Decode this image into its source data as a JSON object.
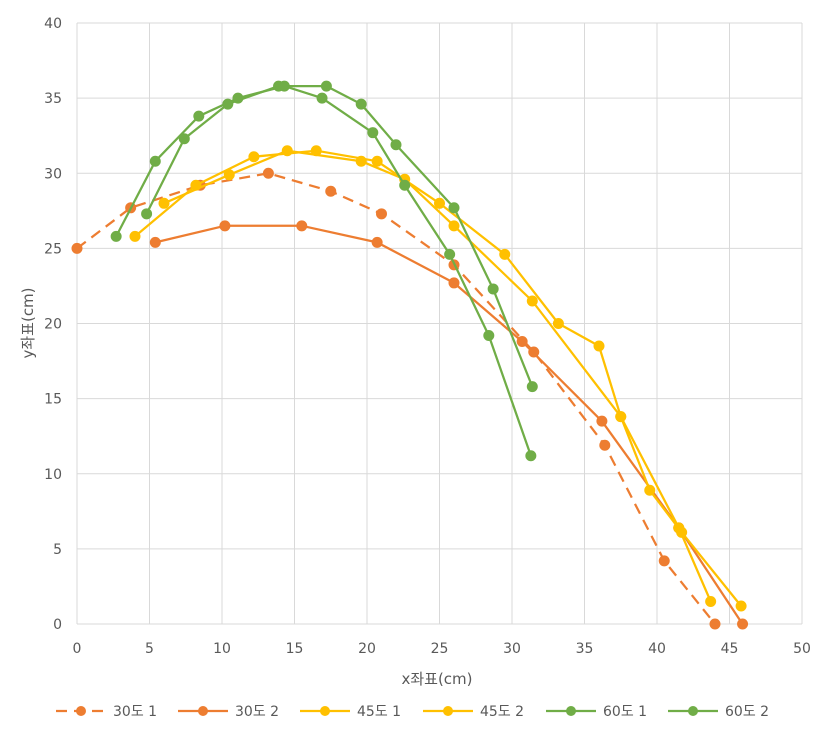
{
  "chart_data": {
    "type": "scatter",
    "xlabel": "x좌표(cm)",
    "ylabel": "y좌표(cm)",
    "xlim": [
      0,
      50
    ],
    "ylim": [
      0,
      40
    ],
    "x_ticks": [
      0,
      5,
      10,
      15,
      20,
      25,
      30,
      35,
      40,
      45,
      50
    ],
    "y_ticks": [
      0,
      5,
      10,
      15,
      20,
      25,
      30,
      35,
      40
    ],
    "grid": true,
    "legend_position": "bottom",
    "series": [
      {
        "name": "30도 1",
        "color": "#ED7D31",
        "dashed": true,
        "points": [
          [
            0,
            25
          ],
          [
            3.7,
            27.7
          ],
          [
            8.5,
            29.2
          ],
          [
            13.2,
            30
          ],
          [
            17.5,
            28.8
          ],
          [
            21,
            27.3
          ],
          [
            26,
            23.9
          ],
          [
            31.5,
            18.1
          ],
          [
            36.4,
            11.9
          ],
          [
            40.5,
            4.2
          ],
          [
            44,
            0
          ]
        ]
      },
      {
        "name": "30도 2",
        "color": "#ED7D31",
        "dashed": false,
        "points": [
          [
            5.4,
            25.4
          ],
          [
            10.2,
            26.5
          ],
          [
            15.5,
            26.5
          ],
          [
            20.7,
            25.4
          ],
          [
            26,
            22.7
          ],
          [
            30.7,
            18.8
          ],
          [
            36.2,
            13.5
          ],
          [
            41.5,
            6.4
          ],
          [
            45.9,
            0
          ]
        ]
      },
      {
        "name": "45도 1",
        "color": "#FFC000",
        "dashed": false,
        "points": [
          [
            4,
            25.8
          ],
          [
            8.2,
            29.2
          ],
          [
            12.2,
            31.1
          ],
          [
            16.5,
            31.5
          ],
          [
            20.7,
            30.8
          ],
          [
            25,
            28
          ],
          [
            29.5,
            24.6
          ],
          [
            33.2,
            20
          ],
          [
            36,
            18.5
          ],
          [
            37.5,
            13.8
          ],
          [
            39.5,
            8.9
          ],
          [
            41.7,
            6.1
          ],
          [
            45.8,
            1.2
          ]
        ]
      },
      {
        "name": "45도 2",
        "color": "#FFC000",
        "dashed": false,
        "points": [
          [
            6,
            28
          ],
          [
            10.5,
            29.9
          ],
          [
            14.5,
            31.5
          ],
          [
            19.6,
            30.8
          ],
          [
            22.6,
            29.6
          ],
          [
            26,
            26.5
          ],
          [
            31.4,
            21.5
          ],
          [
            37.5,
            13.8
          ],
          [
            41.5,
            6.4
          ],
          [
            43.7,
            1.5
          ]
        ]
      },
      {
        "name": "60도 1",
        "color": "#70AD47",
        "dashed": false,
        "points": [
          [
            4.8,
            27.3
          ],
          [
            7.4,
            32.3
          ],
          [
            10.4,
            34.6
          ],
          [
            13.9,
            35.8
          ],
          [
            17.2,
            35.8
          ],
          [
            19.6,
            34.6
          ],
          [
            22,
            31.9
          ],
          [
            26,
            27.7
          ],
          [
            28.7,
            22.3
          ],
          [
            31.4,
            15.8
          ]
        ]
      },
      {
        "name": "60도 2",
        "color": "#70AD47",
        "dashed": false,
        "points": [
          [
            2.7,
            25.8
          ],
          [
            5.4,
            30.8
          ],
          [
            8.4,
            33.8
          ],
          [
            11.1,
            35
          ],
          [
            14.3,
            35.8
          ],
          [
            16.9,
            35
          ],
          [
            20.4,
            32.7
          ],
          [
            22.6,
            29.2
          ],
          [
            25.7,
            24.6
          ],
          [
            28.4,
            19.2
          ],
          [
            31.3,
            11.2
          ]
        ]
      }
    ]
  }
}
